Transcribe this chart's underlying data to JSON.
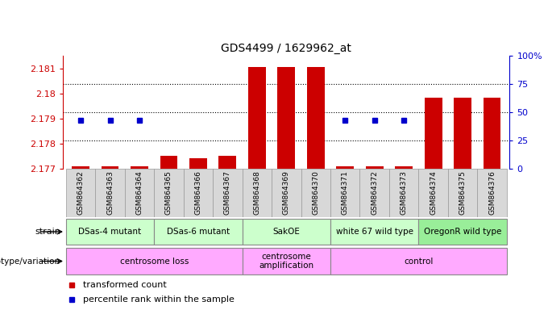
{
  "title": "GDS4499 / 1629962_at",
  "samples": [
    "GSM864362",
    "GSM864363",
    "GSM864364",
    "GSM864365",
    "GSM864366",
    "GSM864367",
    "GSM864368",
    "GSM864369",
    "GSM864370",
    "GSM864371",
    "GSM864372",
    "GSM864373",
    "GSM864374",
    "GSM864375",
    "GSM864376"
  ],
  "bar_values": [
    2.1771,
    2.1771,
    2.1771,
    2.17752,
    2.17743,
    2.17752,
    2.18105,
    2.18105,
    2.18105,
    2.1771,
    2.1771,
    2.1771,
    2.17985,
    2.17985,
    2.17985
  ],
  "percentile_values": [
    43,
    43,
    43,
    null,
    null,
    null,
    null,
    null,
    null,
    43,
    43,
    43,
    null,
    null,
    null
  ],
  "ymin": 2.177,
  "ymax": 2.1815,
  "yticks": [
    2.177,
    2.178,
    2.179,
    2.18,
    2.181
  ],
  "ytick_labels": [
    "2.177",
    "2.178",
    "2.179",
    "2.18",
    "2.181"
  ],
  "right_yticks": [
    0,
    25,
    50,
    75,
    100
  ],
  "right_ytick_labels": [
    "0",
    "25",
    "50",
    "75",
    "100%"
  ],
  "bar_color": "#cc0000",
  "dot_color": "#0000cc",
  "left_axis_color": "#cc0000",
  "right_axis_color": "#0000cc",
  "strain_groups": [
    {
      "label": "DSas-4 mutant",
      "start": 0,
      "end": 3,
      "color": "#ccffcc"
    },
    {
      "label": "DSas-6 mutant",
      "start": 3,
      "end": 6,
      "color": "#ccffcc"
    },
    {
      "label": "SakOE",
      "start": 6,
      "end": 9,
      "color": "#ccffcc"
    },
    {
      "label": "white 67 wild type",
      "start": 9,
      "end": 12,
      "color": "#ccffcc"
    },
    {
      "label": "OregonR wild type",
      "start": 12,
      "end": 15,
      "color": "#99ee99"
    }
  ],
  "genotype_groups": [
    {
      "label": "centrosome loss",
      "start": 0,
      "end": 6,
      "color": "#ffaaff"
    },
    {
      "label": "centrosome\namplification",
      "start": 6,
      "end": 9,
      "color": "#ffaaff"
    },
    {
      "label": "control",
      "start": 9,
      "end": 15,
      "color": "#ffaaff"
    }
  ],
  "legend_items": [
    {
      "color": "#cc0000",
      "label": "transformed count"
    },
    {
      "color": "#0000cc",
      "label": "percentile rank within the sample"
    }
  ],
  "base_value": 2.177
}
